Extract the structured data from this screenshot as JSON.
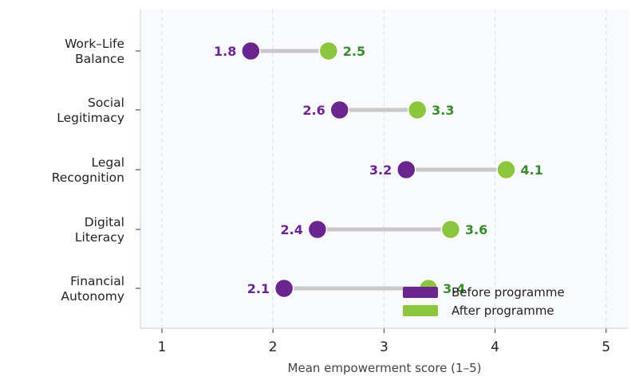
{
  "colors": {
    "before": "#6a2590",
    "after": "#8cc63f",
    "after_label": "#3a8a2e",
    "connector": "#c8c8c8",
    "plot_bg": "#f9fafd",
    "grid": "#dcdde2"
  },
  "chart_data": {
    "type": "dumbbell",
    "title": "",
    "xlabel": "Mean empowerment score (1–5)",
    "ylabel": "",
    "xlim": [
      0.8,
      5.2
    ],
    "xticks": [
      "1",
      "2",
      "3",
      "4",
      "5"
    ],
    "grid": "vertical dashed",
    "legend_position": "bottom-right",
    "categories": [
      [
        "Work–Life",
        "Balance"
      ],
      [
        "Social",
        "Legitimacy"
      ],
      [
        "Legal",
        "Recognition"
      ],
      [
        "Digital",
        "Literacy"
      ],
      [
        "Financial",
        "Autonomy"
      ]
    ],
    "series": [
      {
        "name": "Before programme",
        "values": [
          1.8,
          2.6,
          3.2,
          2.4,
          2.1
        ],
        "labels": [
          "1.8",
          "2.6",
          "3.2",
          "2.4",
          "2.1"
        ]
      },
      {
        "name": "After programme",
        "values": [
          2.5,
          3.3,
          4.1,
          3.6,
          3.4
        ],
        "labels": [
          "2.5",
          "3.3",
          "4.1",
          "3.6",
          "3.4"
        ]
      }
    ]
  }
}
